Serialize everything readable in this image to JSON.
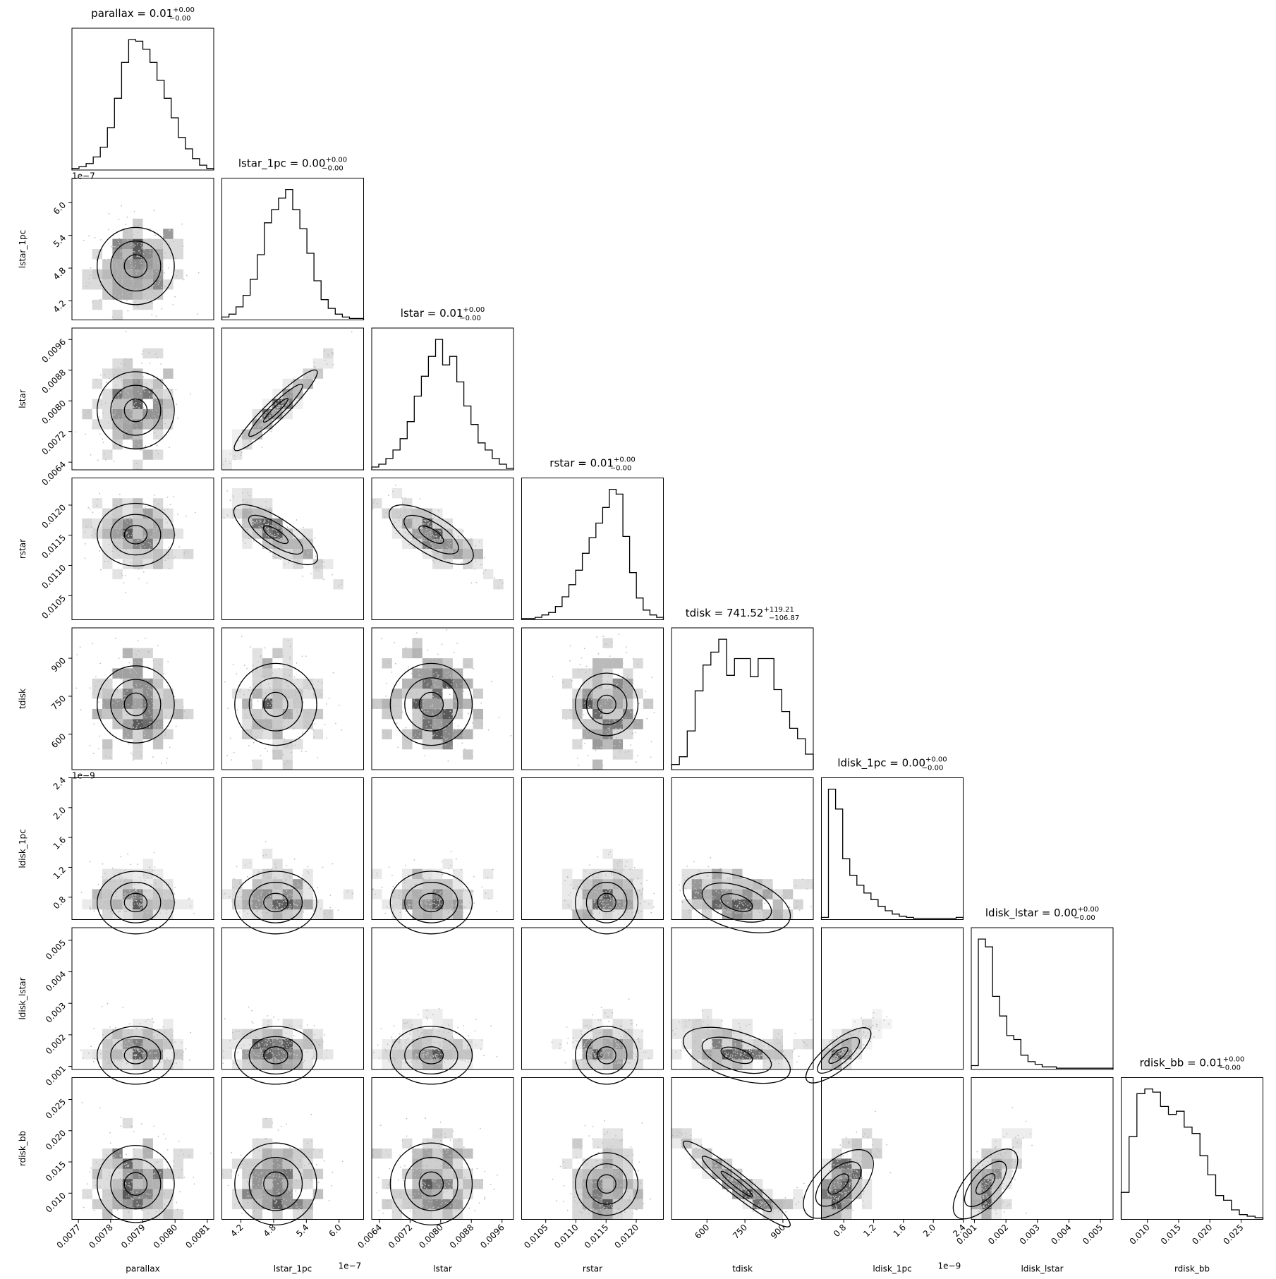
{
  "chart_data": {
    "type": "corner",
    "parameters": [
      "parallax",
      "lstar_1pc",
      "lstar",
      "rstar",
      "tdisk",
      "ldisk_1pc",
      "ldisk_lstar",
      "rdisk_bb"
    ],
    "titles": [
      {
        "prefix": "parallax = 0.01",
        "sup": "+0.00",
        "sub": "−0.00"
      },
      {
        "prefix": "lstar_1pc = 0.00",
        "sup": "+0.00",
        "sub": "−0.00"
      },
      {
        "prefix": "lstar = 0.01",
        "sup": "+0.00",
        "sub": "−0.00"
      },
      {
        "prefix": "rstar = 0.01",
        "sup": "+0.00",
        "sub": "−0.00"
      },
      {
        "prefix": "tdisk = 741.52",
        "sup": "+119.21",
        "sub": "−106.87"
      },
      {
        "prefix": "ldisk_1pc = 0.00",
        "sup": "+0.00",
        "sub": "−0.00"
      },
      {
        "prefix": "ldisk_lstar = 0.00",
        "sup": "+0.00",
        "sub": "−0.00"
      },
      {
        "prefix": "rdisk_bb = 0.01",
        "sup": "+0.00",
        "sub": "−0.00"
      }
    ],
    "ranges": [
      [
        0.00768,
        0.00812
      ],
      [
        3.85e-07,
        6.45e-07
      ],
      [
        0.0062,
        0.0099
      ],
      [
        0.0101,
        0.01245
      ],
      [
        460,
        1020
      ],
      [
        5e-10,
        2.4e-09
      ],
      [
        0.0009,
        0.0054
      ],
      [
        0.0058,
        0.0285
      ]
    ],
    "ticks": [
      [
        "0.0077",
        "0.0078",
        "0.0079",
        "0.0080",
        "0.0081"
      ],
      [
        "4.2",
        "4.8",
        "5.4",
        "6.0"
      ],
      [
        "0.0064",
        "0.0072",
        "0.0080",
        "0.0088",
        "0.0096"
      ],
      [
        "0.0105",
        "0.0110",
        "0.0115",
        "0.0120"
      ],
      [
        "600",
        "750",
        "900"
      ],
      [
        "0.8",
        "1.2",
        "1.6",
        "2.0",
        "2.4"
      ],
      [
        "0.001",
        "0.002",
        "0.003",
        "0.004",
        "0.005"
      ],
      [
        "0.010",
        "0.015",
        "0.020",
        "0.025"
      ]
    ],
    "tick_values": [
      [
        0.0077,
        0.0078,
        0.0079,
        0.008,
        0.0081
      ],
      [
        4.2e-07,
        4.8e-07,
        5.4e-07,
        6e-07
      ],
      [
        0.0064,
        0.0072,
        0.008,
        0.0088,
        0.0096
      ],
      [
        0.0105,
        0.011,
        0.0115,
        0.012
      ],
      [
        600,
        750,
        900
      ],
      [
        8e-10,
        1.2e-09,
        1.6e-09,
        2e-09,
        2.4e-09
      ],
      [
        0.001,
        0.002,
        0.003,
        0.004,
        0.005
      ],
      [
        0.01,
        0.015,
        0.02,
        0.025
      ]
    ],
    "offset_texts": {
      "lstar_1pc": "1e−7",
      "ldisk_1pc": "1e−9"
    },
    "histograms": [
      [
        1,
        2,
        4,
        8,
        14,
        26,
        44,
        66,
        80,
        79,
        74,
        66,
        55,
        44,
        32,
        20,
        13,
        7,
        3,
        1
      ],
      [
        2,
        4,
        9,
        17,
        28,
        45,
        67,
        76,
        84,
        90,
        76,
        63,
        46,
        27,
        14,
        8,
        4,
        2,
        1,
        1
      ],
      [
        2,
        4,
        8,
        14,
        22,
        34,
        52,
        66,
        80,
        92,
        74,
        80,
        62,
        45,
        32,
        19,
        14,
        8,
        4,
        1
      ],
      [
        1,
        1,
        2,
        4,
        6,
        11,
        19,
        29,
        41,
        55,
        68,
        80,
        93,
        108,
        104,
        69,
        39,
        18,
        8,
        4,
        2
      ],
      [
        4,
        10,
        30,
        61,
        81,
        91,
        101,
        73,
        86,
        86,
        72,
        86,
        86,
        62,
        45,
        32,
        24,
        12
      ],
      [
        2,
        118,
        100,
        55,
        40,
        31,
        24,
        18,
        12,
        8,
        5,
        3,
        2,
        1,
        1,
        1,
        1,
        1,
        1,
        2
      ],
      [
        3,
        100,
        94,
        56,
        41,
        26,
        23,
        11,
        6,
        4,
        2,
        2,
        1,
        1,
        1,
        1,
        1,
        1,
        1,
        1
      ],
      [
        17,
        52,
        79,
        82,
        80,
        71,
        66,
        68,
        58,
        54,
        40,
        28,
        15,
        12,
        6,
        3,
        2,
        1
      ]
    ],
    "x_tick_rotation_deg": 45,
    "grid": false
  }
}
